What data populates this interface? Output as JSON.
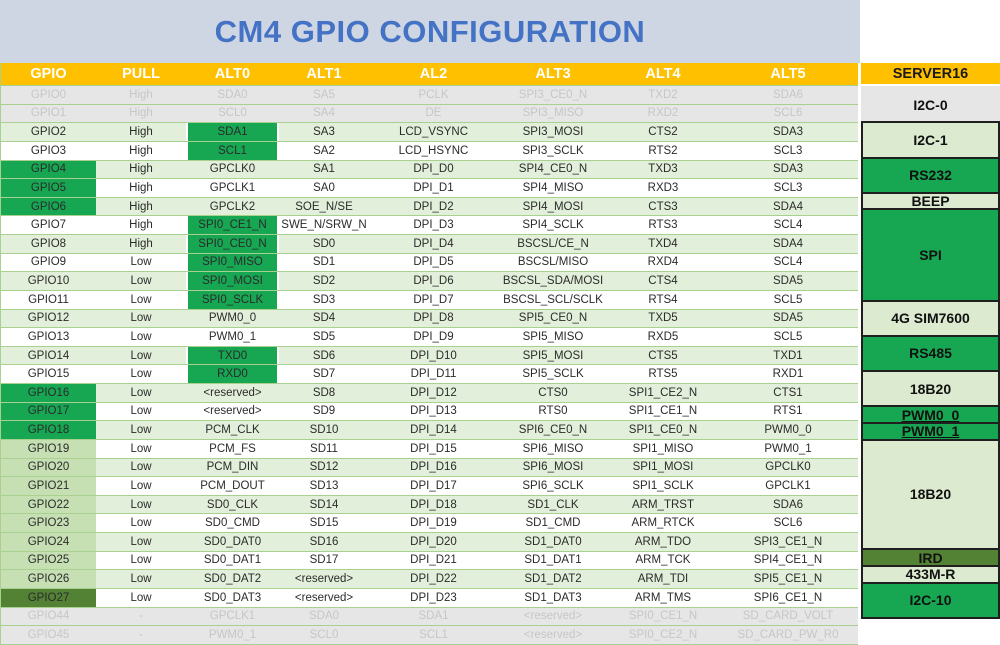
{
  "title": "CM4 GPIO CONFIGURATION",
  "colors": {
    "banner_bg": "#CFD6E3",
    "title_blue": "#4472C4",
    "header_orange": "#FFC000",
    "row_light": "#E2EFDA",
    "row_gray": "#E7E6E6",
    "text_dark": "#2B2B2B",
    "text_disabled": "#C6C6C6",
    "green_strong": "#17A652",
    "green_mid": "#C6E0B4",
    "green_dark": "#548235",
    "server_light": "#DCEAD0",
    "border_green": "#A9D08E",
    "border_dark": "#1F1F1F"
  },
  "table": {
    "headers": [
      "GPIO",
      "PULL",
      "ALT0",
      "ALT1",
      "AL2",
      "ALT3",
      "ALT4",
      "ALT5"
    ],
    "rows": [
      {
        "cells": [
          "GPIO0",
          "High",
          "SDA0",
          "SA5",
          "PCLK",
          "SPI3_CE0_N",
          "TXD2",
          "SDA6"
        ],
        "row_bg": "gray",
        "gpio_style": "none",
        "alt0_green": false,
        "disabled": true
      },
      {
        "cells": [
          "GPIO1",
          "High",
          "SCL0",
          "SA4",
          "DE",
          "SPI3_MISO",
          "RXD2",
          "SCL6"
        ],
        "row_bg": "gray",
        "gpio_style": "none",
        "alt0_green": false,
        "disabled": true
      },
      {
        "cells": [
          "GPIO2",
          "High",
          "SDA1",
          "SA3",
          "LCD_VSYNC",
          "SPI3_MOSI",
          "CTS2",
          "SDA3"
        ],
        "row_bg": "light",
        "gpio_style": "none",
        "alt0_green": true,
        "disabled": false
      },
      {
        "cells": [
          "GPIO3",
          "High",
          "SCL1",
          "SA2",
          "LCD_HSYNC",
          "SPI3_SCLK",
          "RTS2",
          "SCL3"
        ],
        "row_bg": "white",
        "gpio_style": "none",
        "alt0_green": true,
        "disabled": false
      },
      {
        "cells": [
          "GPIO4",
          "High",
          "GPCLK0",
          "SA1",
          "DPI_D0",
          "SPI4_CE0_N",
          "TXD3",
          "SDA3"
        ],
        "row_bg": "light",
        "gpio_style": "green",
        "alt0_green": false,
        "disabled": false
      },
      {
        "cells": [
          "GPIO5",
          "High",
          "GPCLK1",
          "SA0",
          "DPI_D1",
          "SPI4_MISO",
          "RXD3",
          "SCL3"
        ],
        "row_bg": "white",
        "gpio_style": "green",
        "alt0_green": false,
        "disabled": false
      },
      {
        "cells": [
          "GPIO6",
          "High",
          "GPCLK2",
          "SOE_N/SE",
          "DPI_D2",
          "SPI4_MOSI",
          "CTS3",
          "SDA4"
        ],
        "row_bg": "light",
        "gpio_style": "green",
        "alt0_green": false,
        "disabled": false
      },
      {
        "cells": [
          "GPIO7",
          "High",
          "SPI0_CE1_N",
          "SWE_N/SRW_N",
          "DPI_D3",
          "SPI4_SCLK",
          "RTS3",
          "SCL4"
        ],
        "row_bg": "white",
        "gpio_style": "none",
        "alt0_green": true,
        "disabled": false
      },
      {
        "cells": [
          "GPIO8",
          "High",
          "SPI0_CE0_N",
          "SD0",
          "DPI_D4",
          "BSCSL/CE_N",
          "TXD4",
          "SDA4"
        ],
        "row_bg": "light",
        "gpio_style": "none",
        "alt0_green": true,
        "disabled": false
      },
      {
        "cells": [
          "GPIO9",
          "Low",
          "SPI0_MISO",
          "SD1",
          "DPI_D5",
          "BSCSL/MISO",
          "RXD4",
          "SCL4"
        ],
        "row_bg": "white",
        "gpio_style": "none",
        "alt0_green": true,
        "disabled": false
      },
      {
        "cells": [
          "GPIO10",
          "Low",
          "SPI0_MOSI",
          "SD2",
          "DPI_D6",
          "BSCSL_SDA/MOSI",
          "CTS4",
          "SDA5"
        ],
        "row_bg": "light",
        "gpio_style": "none",
        "alt0_green": true,
        "disabled": false
      },
      {
        "cells": [
          "GPIO11",
          "Low",
          "SPI0_SCLK",
          "SD3",
          "DPI_D7",
          "BSCSL_SCL/SCLK",
          "RTS4",
          "SCL5"
        ],
        "row_bg": "white",
        "gpio_style": "none",
        "alt0_green": true,
        "disabled": false
      },
      {
        "cells": [
          "GPIO12",
          "Low",
          "PWM0_0",
          "SD4",
          "DPI_D8",
          "SPI5_CE0_N",
          "TXD5",
          "SDA5"
        ],
        "row_bg": "light",
        "gpio_style": "none",
        "alt0_green": false,
        "disabled": false
      },
      {
        "cells": [
          "GPIO13",
          "Low",
          "PWM0_1",
          "SD5",
          "DPI_D9",
          "SPI5_MISO",
          "RXD5",
          "SCL5"
        ],
        "row_bg": "white",
        "gpio_style": "none",
        "alt0_green": false,
        "disabled": false
      },
      {
        "cells": [
          "GPIO14",
          "Low",
          "TXD0",
          "SD6",
          "DPI_D10",
          "SPI5_MOSI",
          "CTS5",
          "TXD1"
        ],
        "row_bg": "light",
        "gpio_style": "none",
        "alt0_green": true,
        "disabled": false
      },
      {
        "cells": [
          "GPIO15",
          "Low",
          "RXD0",
          "SD7",
          "DPI_D11",
          "SPI5_SCLK",
          "RTS5",
          "RXD1"
        ],
        "row_bg": "white",
        "gpio_style": "none",
        "alt0_green": true,
        "disabled": false
      },
      {
        "cells": [
          "GPIO16",
          "Low",
          "<reserved>",
          "SD8",
          "DPI_D12",
          "CTS0",
          "SPI1_CE2_N",
          "CTS1"
        ],
        "row_bg": "light",
        "gpio_style": "green",
        "alt0_green": false,
        "disabled": false
      },
      {
        "cells": [
          "GPIO17",
          "Low",
          "<reserved>",
          "SD9",
          "DPI_D13",
          "RTS0",
          "SPI1_CE1_N",
          "RTS1"
        ],
        "row_bg": "white",
        "gpio_style": "green",
        "alt0_green": false,
        "disabled": false
      },
      {
        "cells": [
          "GPIO18",
          "Low",
          "PCM_CLK",
          "SD10",
          "DPI_D14",
          "SPI6_CE0_N",
          "SPI1_CE0_N",
          "PWM0_0"
        ],
        "row_bg": "light",
        "gpio_style": "green",
        "alt0_green": false,
        "disabled": false
      },
      {
        "cells": [
          "GPIO19",
          "Low",
          "PCM_FS",
          "SD11",
          "DPI_D15",
          "SPI6_MISO",
          "SPI1_MISO",
          "PWM0_1"
        ],
        "row_bg": "white",
        "gpio_style": "mid",
        "alt0_green": false,
        "disabled": false
      },
      {
        "cells": [
          "GPIO20",
          "Low",
          "PCM_DIN",
          "SD12",
          "DPI_D16",
          "SPI6_MOSI",
          "SPI1_MOSI",
          "GPCLK0"
        ],
        "row_bg": "light",
        "gpio_style": "mid",
        "alt0_green": false,
        "disabled": false
      },
      {
        "cells": [
          "GPIO21",
          "Low",
          "PCM_DOUT",
          "SD13",
          "DPI_D17",
          "SPI6_SCLK",
          "SPI1_SCLK",
          "GPCLK1"
        ],
        "row_bg": "white",
        "gpio_style": "mid",
        "alt0_green": false,
        "disabled": false
      },
      {
        "cells": [
          "GPIO22",
          "Low",
          "SD0_CLK",
          "SD14",
          "DPI_D18",
          "SD1_CLK",
          "ARM_TRST",
          "SDA6"
        ],
        "row_bg": "light",
        "gpio_style": "mid",
        "alt0_green": false,
        "disabled": false
      },
      {
        "cells": [
          "GPIO23",
          "Low",
          "SD0_CMD",
          "SD15",
          "DPI_D19",
          "SD1_CMD",
          "ARM_RTCK",
          "SCL6"
        ],
        "row_bg": "white",
        "gpio_style": "mid",
        "alt0_green": false,
        "disabled": false
      },
      {
        "cells": [
          "GPIO24",
          "Low",
          "SD0_DAT0",
          "SD16",
          "DPI_D20",
          "SD1_DAT0",
          "ARM_TDO",
          "SPI3_CE1_N"
        ],
        "row_bg": "light",
        "gpio_style": "mid",
        "alt0_green": false,
        "disabled": false
      },
      {
        "cells": [
          "GPIO25",
          "Low",
          "SD0_DAT1",
          "SD17",
          "DPI_D21",
          "SD1_DAT1",
          "ARM_TCK",
          "SPI4_CE1_N"
        ],
        "row_bg": "white",
        "gpio_style": "mid",
        "alt0_green": false,
        "disabled": false
      },
      {
        "cells": [
          "GPIO26",
          "Low",
          "SD0_DAT2",
          "<reserved>",
          "DPI_D22",
          "SD1_DAT2",
          "ARM_TDI",
          "SPI5_CE1_N"
        ],
        "row_bg": "light",
        "gpio_style": "mid",
        "alt0_green": false,
        "disabled": false
      },
      {
        "cells": [
          "GPIO27",
          "Low",
          "SD0_DAT3",
          "<reserved>",
          "DPI_D23",
          "SD1_DAT3",
          "ARM_TMS",
          "SPI6_CE1_N"
        ],
        "row_bg": "white",
        "gpio_style": "dark",
        "alt0_green": false,
        "disabled": false
      },
      {
        "cells": [
          "GPIO44",
          "-",
          "GPCLK1",
          "SDA0",
          "SDA1",
          "<reserved>",
          "SPI0_CE1_N",
          "SD_CARD_VOLT"
        ],
        "row_bg": "gray",
        "gpio_style": "none",
        "alt0_green": false,
        "disabled": true
      },
      {
        "cells": [
          "GPIO45",
          "-",
          "PWM0_1",
          "SCL0",
          "SCL1",
          "<reserved>",
          "SPI0_CE2_N",
          "SD_CARD_PW_R0"
        ],
        "row_bg": "gray",
        "gpio_style": "none",
        "alt0_green": false,
        "disabled": true
      }
    ]
  },
  "server": {
    "header": "SERVER16",
    "cells": [
      {
        "label": "I2C-0",
        "rows": 2,
        "style": "gray",
        "underline": false
      },
      {
        "label": "I2C-1",
        "rows": 2,
        "style": "light",
        "underline": false
      },
      {
        "label": "RS232",
        "rows": 2,
        "style": "green",
        "underline": false
      },
      {
        "label": "BEEP",
        "rows": 1,
        "style": "light",
        "underline": false
      },
      {
        "label": "SPI",
        "rows": 5,
        "style": "green",
        "underline": false
      },
      {
        "label": "4G SIM7600",
        "rows": 2,
        "style": "light",
        "underline": false
      },
      {
        "label": "RS485",
        "rows": 2,
        "style": "green",
        "underline": false
      },
      {
        "label": "18B20",
        "rows": 2,
        "style": "light",
        "underline": false
      },
      {
        "label": "PWM0_0",
        "rows": 1,
        "style": "green",
        "underline": true
      },
      {
        "label": "PWM0_1",
        "rows": 1,
        "style": "green",
        "underline": true
      },
      {
        "label": "18B20",
        "rows": 6,
        "style": "light",
        "underline": false
      },
      {
        "label": "IRD",
        "rows": 1,
        "style": "dark",
        "underline": false
      },
      {
        "label": "433M-R",
        "rows": 1,
        "style": "light",
        "underline": false
      },
      {
        "label": "I2C-10",
        "rows": 2,
        "style": "green",
        "underline": false
      }
    ]
  }
}
